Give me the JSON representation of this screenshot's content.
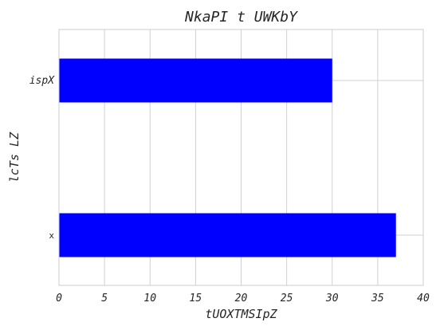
{
  "chart_data": {
    "type": "bar",
    "orientation": "horizontal",
    "title": "NkaPI t UWKbY",
    "xlabel": "tUOXTMSIpZ",
    "ylabel": "lcTs LZ",
    "categories": [
      "ispX",
      "x"
    ],
    "values": [
      30,
      37
    ],
    "xlim": [
      0,
      40
    ],
    "xticks": [
      0,
      5,
      10,
      15,
      20,
      25,
      30,
      35,
      40
    ],
    "grid": true,
    "bar_color": "#0000ff"
  }
}
